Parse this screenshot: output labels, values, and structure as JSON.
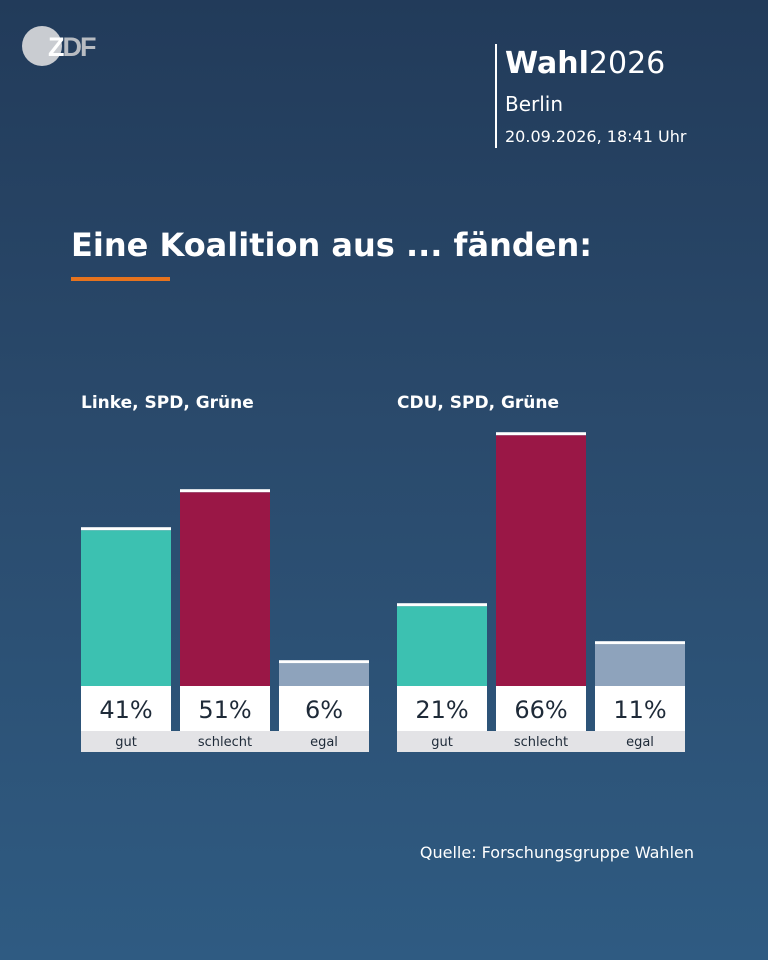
{
  "brand": {
    "logo_text": "ZDF",
    "title_bold": "Wahl",
    "title_year": "2026",
    "city": "Berlin",
    "datetime": "20.09.2026, 18:41 Uhr"
  },
  "headline": "Eine Koalition aus ... fänden:",
  "source": "Quelle: Forschungsgruppe Wahlen",
  "colors": {
    "gut": "#3cc1b1",
    "schlecht": "#9a1746",
    "egal": "#8ea3bc",
    "accent": "#e6731e",
    "label_bg": "#ffffff",
    "category_bg": "#e3e3e6",
    "value_text": "#1e2a38"
  },
  "chart_data": [
    {
      "type": "bar",
      "title": "Linke, SPD, Grüne",
      "categories": [
        "gut",
        "schlecht",
        "egal"
      ],
      "values": [
        41,
        51,
        6
      ],
      "value_labels": [
        "41%",
        "51%",
        "6%"
      ],
      "unit": "%"
    },
    {
      "type": "bar",
      "title": "CDU, SPD, Grüne",
      "categories": [
        "gut",
        "schlecht",
        "egal"
      ],
      "values": [
        21,
        66,
        11
      ],
      "value_labels": [
        "21%",
        "66%",
        "11%"
      ],
      "unit": "%"
    }
  ]
}
